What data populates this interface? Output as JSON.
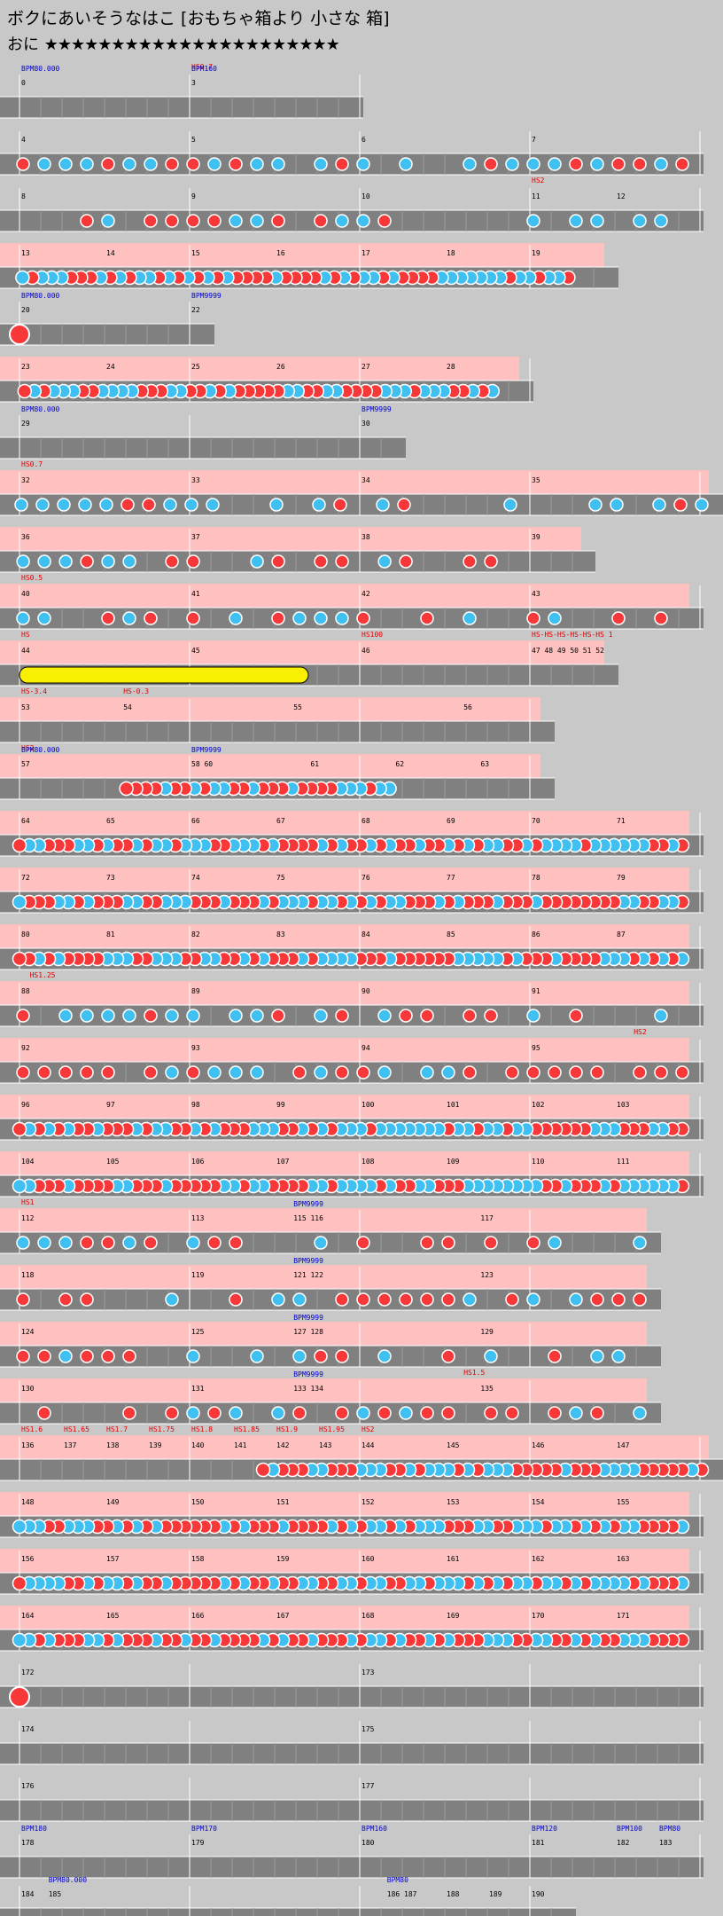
{
  "title": "ボクにあいそうなはこ [おもちゃ箱より 小さな 箱]",
  "difficulty": {
    "label": "おに",
    "stars": "★★★★★★★★★★★★★★★★★★★★★★"
  },
  "colors": {
    "bg": "#c8c8c8",
    "lane": "#808080",
    "don": "#f83838",
    "ka": "#40c0f0",
    "roll": "#f8f000",
    "gogo": "#ffc0c0",
    "bpm": "#0000cc",
    "hs": "#e00000"
  },
  "rows": [
    {
      "labels": [
        [
          "0",
          0,
          "n"
        ],
        [
          "BPM80.000",
          0,
          "b"
        ],
        [
          "3",
          1,
          "n"
        ],
        [
          "HS0.7",
          1,
          "r"
        ],
        [
          "BPM160",
          1,
          "b"
        ]
      ]
    },
    {
      "labels": [
        [
          "4",
          0,
          "n"
        ],
        [
          "5",
          1,
          "n"
        ],
        [
          "6",
          2,
          "n"
        ],
        [
          "7",
          3,
          "n"
        ]
      ]
    },
    {
      "labels": [
        [
          "8",
          0,
          "n"
        ],
        [
          "9",
          1,
          "n"
        ],
        [
          "10",
          2,
          "n"
        ],
        [
          "11",
          3,
          "n"
        ],
        [
          "HS2",
          3,
          "r"
        ],
        [
          "12",
          3.5,
          "n"
        ]
      ]
    },
    {
      "labels": [
        [
          "13",
          0,
          "n"
        ],
        [
          "14",
          0.5,
          "n"
        ],
        [
          "15",
          1,
          "n"
        ],
        [
          "16",
          1.5,
          "n"
        ],
        [
          "17",
          2,
          "n"
        ],
        [
          "18",
          2.5,
          "n"
        ],
        [
          "19",
          3,
          "n"
        ]
      ]
    },
    {
      "labels": [
        [
          "20",
          0,
          "n"
        ],
        [
          "BPM80.000",
          0,
          "b"
        ],
        [
          "22",
          1,
          "n"
        ],
        [
          "BPM9999",
          1,
          "b"
        ]
      ]
    },
    {
      "labels": [
        [
          "23",
          0,
          "n"
        ],
        [
          "24",
          0.5,
          "n"
        ],
        [
          "25",
          1,
          "n"
        ],
        [
          "26",
          1.5,
          "n"
        ],
        [
          "27",
          2,
          "n"
        ],
        [
          "28",
          2.5,
          "n"
        ]
      ]
    },
    {
      "labels": [
        [
          "29",
          0,
          "n"
        ],
        [
          "BPM80.000",
          0,
          "b"
        ],
        [
          "30",
          2,
          "n"
        ],
        [
          "BPM9999",
          2,
          "b"
        ]
      ]
    },
    {
      "labels": [
        [
          "32",
          0,
          "n"
        ],
        [
          "HS0.7",
          0,
          "r"
        ],
        [
          "33",
          1,
          "n"
        ],
        [
          "34",
          2,
          "n"
        ],
        [
          "35",
          3,
          "n"
        ]
      ]
    },
    {
      "labels": [
        [
          "36",
          0,
          "n"
        ],
        [
          "37",
          1,
          "n"
        ],
        [
          "38",
          2,
          "n"
        ],
        [
          "39",
          3,
          "n"
        ]
      ]
    },
    {
      "labels": [
        [
          "40",
          0,
          "n"
        ],
        [
          "HS0.5",
          0,
          "r"
        ],
        [
          "41",
          1,
          "n"
        ],
        [
          "42",
          2,
          "n"
        ],
        [
          "43",
          3,
          "n"
        ]
      ]
    },
    {
      "labels": [
        [
          "44",
          0,
          "n"
        ],
        [
          "HS",
          0,
          "r"
        ],
        [
          "45",
          1,
          "n"
        ],
        [
          "46",
          2,
          "n"
        ],
        [
          "HS100",
          2,
          "r"
        ],
        [
          "47 48 49 50 51 52",
          3,
          "n"
        ],
        [
          "HS-HS-HS-HS-HS-HS 1",
          3,
          "r"
        ]
      ]
    },
    {
      "labels": [
        [
          "53",
          0,
          "n"
        ],
        [
          "HS-3.4",
          0,
          "r"
        ],
        [
          "HS-0.3",
          0.6,
          "r"
        ],
        [
          "54",
          0.6,
          "n"
        ],
        [
          "55",
          1.6,
          "n"
        ],
        [
          "56",
          2.6,
          "n"
        ]
      ]
    },
    {
      "labels": [
        [
          "57",
          0,
          "n"
        ],
        [
          "HS2",
          0,
          "r"
        ],
        [
          "BPM80.000",
          0,
          "b"
        ],
        [
          "58 60",
          1,
          "n"
        ],
        [
          "BPM9999",
          1,
          "b"
        ],
        [
          "61",
          1.7,
          "n"
        ],
        [
          "62",
          2.2,
          "n"
        ],
        [
          "63",
          2.7,
          "n"
        ]
      ]
    },
    {
      "labels": [
        [
          "64",
          0,
          "n"
        ],
        [
          "65",
          0.5,
          "n"
        ],
        [
          "66",
          1,
          "n"
        ],
        [
          "67",
          1.5,
          "n"
        ],
        [
          "68",
          2,
          "n"
        ],
        [
          "69",
          2.5,
          "n"
        ],
        [
          "70",
          3,
          "n"
        ],
        [
          "71",
          3.5,
          "n"
        ]
      ]
    },
    {
      "labels": [
        [
          "72",
          0,
          "n"
        ],
        [
          "73",
          0.5,
          "n"
        ],
        [
          "74",
          1,
          "n"
        ],
        [
          "75",
          1.5,
          "n"
        ],
        [
          "76",
          2,
          "n"
        ],
        [
          "77",
          2.5,
          "n"
        ],
        [
          "78",
          3,
          "n"
        ],
        [
          "79",
          3.5,
          "n"
        ]
      ]
    },
    {
      "labels": [
        [
          "80",
          0,
          "n"
        ],
        [
          "81",
          0.5,
          "n"
        ],
        [
          "82",
          1,
          "n"
        ],
        [
          "83",
          1.5,
          "n"
        ],
        [
          "84",
          2,
          "n"
        ],
        [
          "85",
          2.5,
          "n"
        ],
        [
          "86",
          3,
          "n"
        ],
        [
          "87",
          3.5,
          "n"
        ]
      ]
    },
    {
      "labels": [
        [
          "88",
          0,
          "n"
        ],
        [
          "HS1.25",
          0.05,
          "r"
        ],
        [
          "89",
          1,
          "n"
        ],
        [
          "90",
          2,
          "n"
        ],
        [
          "91",
          3,
          "n"
        ]
      ]
    },
    {
      "labels": [
        [
          "92",
          0,
          "n"
        ],
        [
          "93",
          1,
          "n"
        ],
        [
          "94",
          2,
          "n"
        ],
        [
          "95",
          3,
          "n"
        ],
        [
          "HS2",
          3.6,
          "r"
        ]
      ]
    },
    {
      "labels": [
        [
          "96",
          0,
          "n"
        ],
        [
          "97",
          0.5,
          "n"
        ],
        [
          "98",
          1,
          "n"
        ],
        [
          "99",
          1.5,
          "n"
        ],
        [
          "100",
          2,
          "n"
        ],
        [
          "101",
          2.5,
          "n"
        ],
        [
          "102",
          3,
          "n"
        ],
        [
          "103",
          3.5,
          "n"
        ]
      ]
    },
    {
      "labels": [
        [
          "104",
          0,
          "n"
        ],
        [
          "105",
          0.5,
          "n"
        ],
        [
          "106",
          1,
          "n"
        ],
        [
          "107",
          1.5,
          "n"
        ],
        [
          "108",
          2,
          "n"
        ],
        [
          "109",
          2.5,
          "n"
        ],
        [
          "110",
          3,
          "n"
        ],
        [
          "111",
          3.5,
          "n"
        ]
      ]
    },
    {
      "labels": [
        [
          "112",
          0,
          "n"
        ],
        [
          "HS1",
          0,
          "r"
        ],
        [
          "113",
          1,
          "n"
        ],
        [
          "115 116",
          1.6,
          "n"
        ],
        [
          "BPM9999",
          1.6,
          "b"
        ],
        [
          "117",
          2.7,
          "n"
        ]
      ]
    },
    {
      "labels": [
        [
          "118",
          0,
          "n"
        ],
        [
          "119",
          1,
          "n"
        ],
        [
          "121 122",
          1.6,
          "n"
        ],
        [
          "BPM9999",
          1.6,
          "b"
        ],
        [
          "123",
          2.7,
          "n"
        ]
      ]
    },
    {
      "labels": [
        [
          "124",
          0,
          "n"
        ],
        [
          "125",
          1,
          "n"
        ],
        [
          "127 128",
          1.6,
          "n"
        ],
        [
          "BPM9999",
          1.6,
          "b"
        ],
        [
          "129",
          2.7,
          "n"
        ]
      ]
    },
    {
      "labels": [
        [
          "130",
          0,
          "n"
        ],
        [
          "131",
          1,
          "n"
        ],
        [
          "133 134",
          1.6,
          "n"
        ],
        [
          "BPM9999",
          1.6,
          "b"
        ],
        [
          "135",
          2.7,
          "n"
        ],
        [
          "HS1.5",
          2.6,
          "r"
        ]
      ]
    },
    {
      "labels": [
        [
          "136",
          0,
          "n"
        ],
        [
          "HS1.6",
          0,
          "r"
        ],
        [
          "137",
          0.25,
          "n"
        ],
        [
          "HS1.65",
          0.25,
          "r"
        ],
        [
          "138",
          0.5,
          "n"
        ],
        [
          "HS1.7",
          0.5,
          "r"
        ],
        [
          "139",
          0.75,
          "n"
        ],
        [
          "HS1.75",
          0.75,
          "r"
        ],
        [
          "140",
          1,
          "n"
        ],
        [
          "HS1.8",
          1,
          "r"
        ],
        [
          "141",
          1.25,
          "n"
        ],
        [
          "HS1.85",
          1.25,
          "r"
        ],
        [
          "142",
          1.5,
          "n"
        ],
        [
          "HS1.9",
          1.5,
          "r"
        ],
        [
          "143",
          1.75,
          "n"
        ],
        [
          "HS1.95",
          1.75,
          "r"
        ],
        [
          "144",
          2,
          "n"
        ],
        [
          "HS2",
          2,
          "r"
        ],
        [
          "145",
          2.5,
          "n"
        ],
        [
          "146",
          3,
          "n"
        ],
        [
          "147",
          3.5,
          "n"
        ]
      ]
    },
    {
      "labels": [
        [
          "148",
          0,
          "n"
        ],
        [
          "149",
          0.5,
          "n"
        ],
        [
          "150",
          1,
          "n"
        ],
        [
          "151",
          1.5,
          "n"
        ],
        [
          "152",
          2,
          "n"
        ],
        [
          "153",
          2.5,
          "n"
        ],
        [
          "154",
          3,
          "n"
        ],
        [
          "155",
          3.5,
          "n"
        ]
      ]
    },
    {
      "labels": [
        [
          "156",
          0,
          "n"
        ],
        [
          "157",
          0.5,
          "n"
        ],
        [
          "158",
          1,
          "n"
        ],
        [
          "159",
          1.5,
          "n"
        ],
        [
          "160",
          2,
          "n"
        ],
        [
          "161",
          2.5,
          "n"
        ],
        [
          "162",
          3,
          "n"
        ],
        [
          "163",
          3.5,
          "n"
        ]
      ]
    },
    {
      "labels": [
        [
          "164",
          0,
          "n"
        ],
        [
          "165",
          0.5,
          "n"
        ],
        [
          "166",
          1,
          "n"
        ],
        [
          "167",
          1.5,
          "n"
        ],
        [
          "168",
          2,
          "n"
        ],
        [
          "169",
          2.5,
          "n"
        ],
        [
          "170",
          3,
          "n"
        ],
        [
          "171",
          3.5,
          "n"
        ]
      ]
    },
    {
      "labels": [
        [
          "172",
          0,
          "n"
        ],
        [
          "173",
          2,
          "n"
        ]
      ]
    },
    {
      "labels": [
        [
          "174",
          0,
          "n"
        ],
        [
          "175",
          2,
          "n"
        ]
      ]
    },
    {
      "labels": [
        [
          "176",
          0,
          "n"
        ],
        [
          "177",
          2,
          "n"
        ]
      ]
    },
    {
      "labels": [
        [
          "178",
          0,
          "n"
        ],
        [
          "BPM180",
          0,
          "b"
        ],
        [
          "179",
          1,
          "n"
        ],
        [
          "BPM170",
          1,
          "b"
        ],
        [
          "180",
          2,
          "n"
        ],
        [
          "BPM160",
          2,
          "b"
        ],
        [
          "181",
          3,
          "n"
        ],
        [
          "BPM120",
          3,
          "b"
        ],
        [
          "182",
          3.5,
          "n"
        ],
        [
          "BPM100",
          3.5,
          "b"
        ],
        [
          "183",
          3.75,
          "n"
        ],
        [
          "BPM80",
          3.75,
          "b"
        ]
      ]
    },
    {
      "labels": [
        [
          "184",
          0,
          "n"
        ],
        [
          "185",
          0.16,
          "n"
        ],
        [
          "BPM80.000",
          0.16,
          "b"
        ],
        [
          "186",
          2.15,
          "n"
        ],
        [
          "BPM80",
          2.15,
          "b"
        ],
        [
          "187",
          2.25,
          "n"
        ],
        [
          "188",
          2.5,
          "n"
        ],
        [
          "189",
          2.75,
          "n"
        ],
        [
          "190",
          3,
          "n"
        ]
      ]
    }
  ]
}
